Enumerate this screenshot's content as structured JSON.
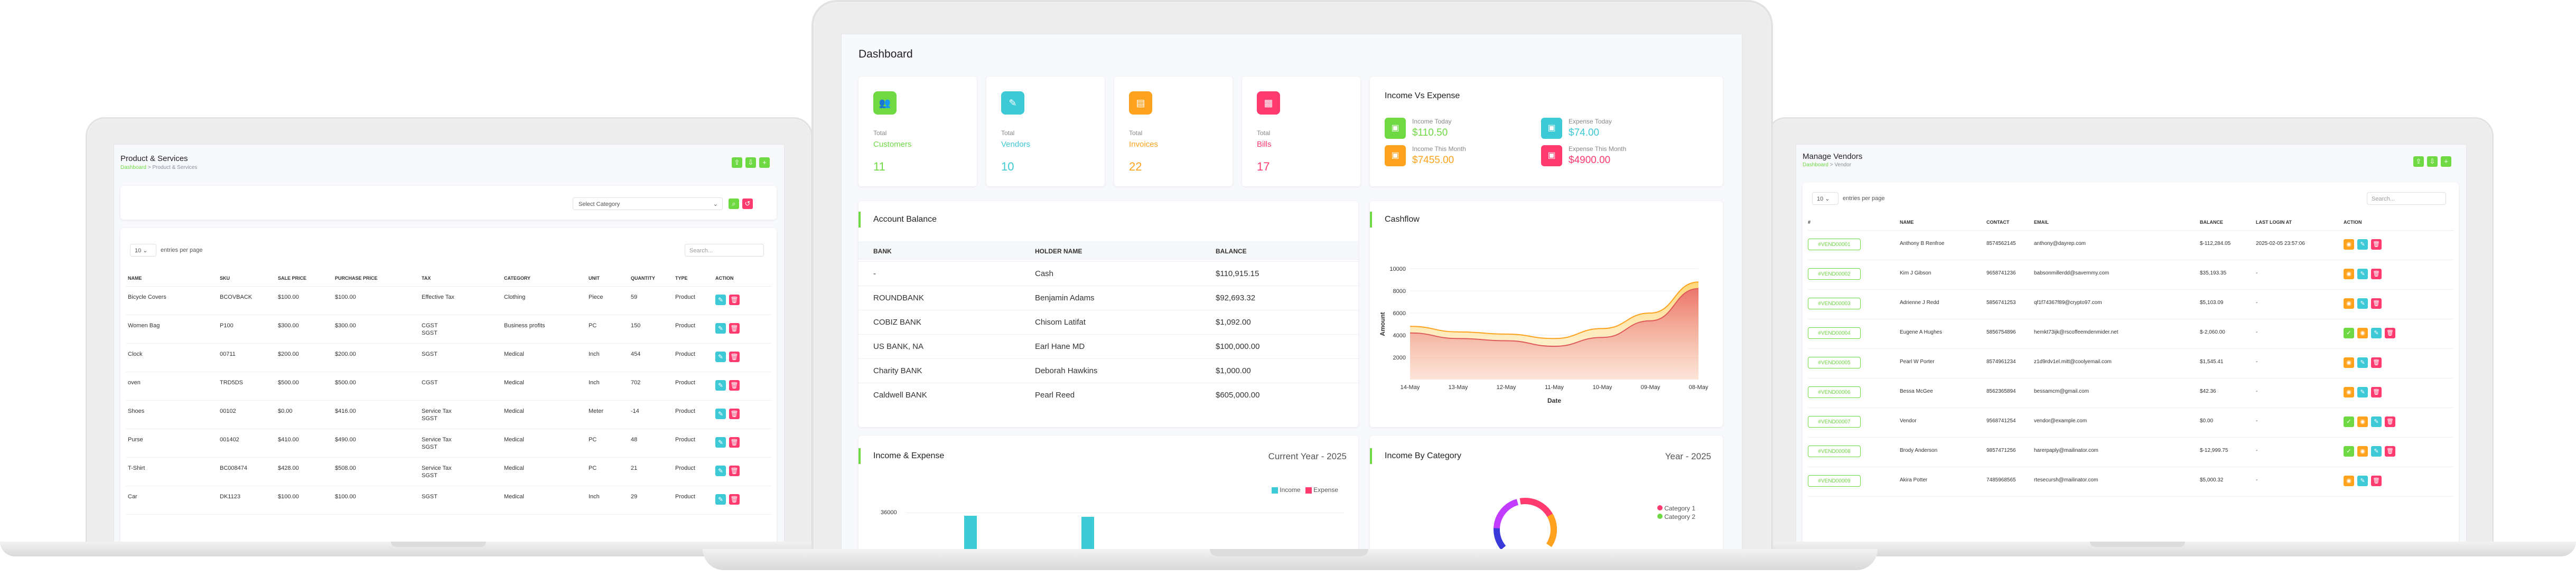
{
  "colors": {
    "green": "#6fd943",
    "blue": "#3ec9d6",
    "orange": "#ffa21d",
    "pink": "#ff3a6e",
    "panel_bg": "#f8f9fd"
  },
  "left": {
    "title": "Product & Services",
    "breadcrumb_home": "Dashboard",
    "breadcrumb_sep": ">",
    "breadcrumb_current": "Product & Services",
    "category_placeholder": "Select Category",
    "entries_value": "10",
    "entries_label": "entries per page",
    "search_placeholder": "Search...",
    "columns": [
      "NAME",
      "SKU",
      "SALE PRICE",
      "PURCHASE PRICE",
      "TAX",
      "CATEGORY",
      "UNIT",
      "QUANTITY",
      "TYPE",
      "ACTION"
    ],
    "rows": [
      [
        "Bicycle Covers",
        "BCOVBACK",
        "$100.00",
        "$100.00",
        "Effective Tax",
        "Clothing",
        "Piece",
        "59",
        "Product"
      ],
      [
        "Women Bag",
        "P100",
        "$300.00",
        "$300.00",
        "CGST\nSGST",
        "Business profits",
        "PC",
        "150",
        "Product"
      ],
      [
        "Clock",
        "00711",
        "$200.00",
        "$200.00",
        "SGST",
        "Medical",
        "Inch",
        "454",
        "Product"
      ],
      [
        "oven",
        "TRD5DS",
        "$500.00",
        "$500.00",
        "CGST",
        "Medical",
        "Inch",
        "702",
        "Product"
      ],
      [
        "Shoes",
        "00102",
        "$0.00",
        "$416.00",
        "Service Tax\nSGST",
        "Medical",
        "Meter",
        "-14",
        "Product"
      ],
      [
        "Purse",
        "001402",
        "$410.00",
        "$490.00",
        "Service Tax\nSGST",
        "Medical",
        "PC",
        "48",
        "Product"
      ],
      [
        "T-Shirt",
        "BC008474",
        "$428.00",
        "$508.00",
        "Service Tax\nSGST",
        "Medical",
        "PC",
        "21",
        "Product"
      ],
      [
        "Car",
        "DK1123",
        "$100.00",
        "$100.00",
        "SGST",
        "Medical",
        "Inch",
        "29",
        "Product"
      ]
    ]
  },
  "center": {
    "title": "Dashboard",
    "stats": [
      {
        "label": "Total",
        "name": "Customers",
        "value": "11",
        "color": "#6fd943",
        "icon": "users-icon"
      },
      {
        "label": "Total",
        "name": "Vendors",
        "value": "10",
        "color": "#3ec9d6",
        "icon": "note-icon"
      },
      {
        "label": "Total",
        "name": "Invoices",
        "value": "22",
        "color": "#ffa21d",
        "icon": "file-invoice-icon"
      },
      {
        "label": "Total",
        "name": "Bills",
        "value": "17",
        "color": "#ff3a6e",
        "icon": "receipt-icon"
      }
    ],
    "income_expense": {
      "title": "Income Vs Expense",
      "items": [
        {
          "label": "Income Today",
          "value": "$110.50",
          "color": "#6fd943"
        },
        {
          "label": "Expense Today",
          "value": "$74.00",
          "color": "#3ec9d6"
        },
        {
          "label": "Income This Month",
          "value": "$7455.00",
          "color": "#ffa21d"
        },
        {
          "label": "Expense This Month",
          "value": "$4900.00",
          "color": "#ff3a6e"
        }
      ]
    },
    "account_balance": {
      "title": "Account Balance",
      "columns": [
        "BANK",
        "HOLDER NAME",
        "BALANCE"
      ],
      "rows": [
        [
          "-",
          "Cash",
          "$110,915.15"
        ],
        [
          "ROUNDBANK",
          "Benjamin Adams",
          "$92,693.32"
        ],
        [
          "COBIZ BANK",
          "Chisom Latifat",
          "$1,092.00"
        ],
        [
          "US BANK, NA",
          "Earl Hane MD",
          "$100,000.00"
        ],
        [
          "Charity BANK",
          "Deborah Hawkins",
          "$1,000.00"
        ],
        [
          "Caldwell BANK",
          "Pearl Reed",
          "$605,000.00"
        ]
      ]
    },
    "cashflow": {
      "title": "Cashflow",
      "xlabel": "Date",
      "ylabel": "Amount",
      "y_ticks": [
        "10000",
        "8000",
        "6000",
        "4000",
        "2000"
      ],
      "x_ticks": [
        "14-May",
        "13-May",
        "12-May",
        "11-May",
        "10-May",
        "09-May",
        "08-May"
      ]
    },
    "income_expense_chart": {
      "title": "Income & Expense",
      "period": "Current Year - 2025",
      "legend_income": "Income",
      "legend_expense": "Expense",
      "y_top": "36000"
    },
    "income_by_category": {
      "title": "Income By Category",
      "period": "Year - 2025",
      "legend": [
        "Category 1",
        "Category 2"
      ]
    }
  },
  "chart_data": {
    "type": "area",
    "x": [
      "14-May",
      "13-May",
      "12-May",
      "11-May",
      "10-May",
      "09-May",
      "08-May"
    ],
    "ylim": [
      0,
      10000
    ],
    "series": [
      {
        "values": [
          4800,
          4300,
          4100,
          3700,
          4600,
          6000,
          8800
        ]
      },
      {
        "values": [
          4200,
          3700,
          3500,
          3000,
          3800,
          5300,
          8200
        ]
      }
    ]
  },
  "right": {
    "title": "Manage Vendors",
    "breadcrumb_home": "Dashboard",
    "breadcrumb_sep": ">",
    "breadcrumb_current": "Vendor",
    "entries_value": "10",
    "entries_label": "entries per page",
    "search_placeholder": "Search...",
    "columns": [
      "#",
      "NAME",
      "CONTACT",
      "EMAIL",
      "BALANCE",
      "LAST LOGIN AT",
      "ACTION"
    ],
    "rows": [
      [
        "#VEND00001",
        "Anthony B Renfroe",
        "8574562145",
        "anthony@dayrep.com",
        "$-112,284.05",
        "2025-02-05 23:57:06"
      ],
      [
        "#VEND00002",
        "Kim J Gibson",
        "9658741236",
        "babsonmillerdd@savernmy.com",
        "$35,193.35",
        "-"
      ],
      [
        "#VEND00003",
        "Adrienne J Redd",
        "5856741253",
        "qf1f74367f89@crypto97.com",
        "$5,103.09",
        "-"
      ],
      [
        "#VEND00004",
        "Eugene A Hughes",
        "5856754896",
        "hemkt73ijk@rscoffeemdenmider.net",
        "$-2,060.00",
        "-"
      ],
      [
        "#VEND00005",
        "Pearl W Porter",
        "8574961234",
        "z1d9rdv1el.mitt@coolyemail.com",
        "$1,545.41",
        "-"
      ],
      [
        "#VEND00006",
        "Bessa McGee",
        "8562365894",
        "bessamcm@gmail.com",
        "$42.36",
        "-"
      ],
      [
        "#VEND00007",
        "Vendor",
        "9568741254",
        "vendor@example.com",
        "$0.00",
        "-"
      ],
      [
        "#VEND00008",
        "Brody Anderson",
        "9857471256",
        "harerpaply@mailinator.com",
        "$-12,999.75",
        "-"
      ],
      [
        "#VEND00009",
        "Akira Potter",
        "7485968565",
        "rtesecursh@mailinator.com",
        "$5,000.32",
        "-"
      ]
    ]
  }
}
